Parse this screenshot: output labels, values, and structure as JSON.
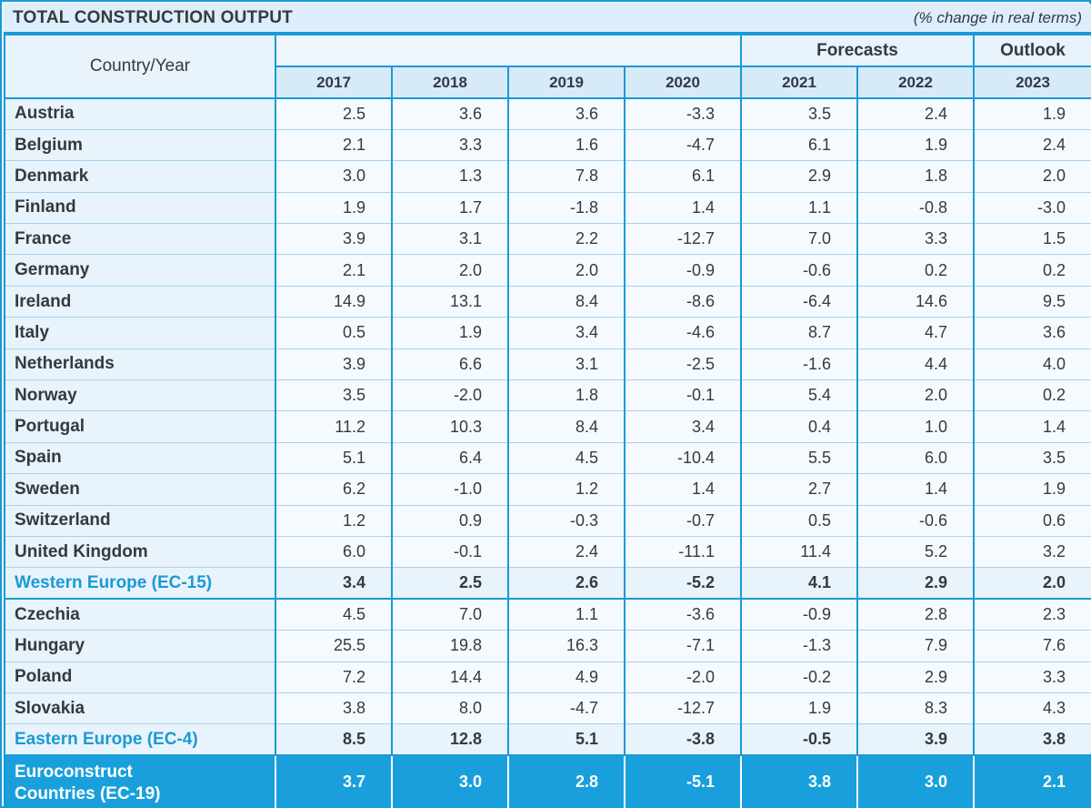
{
  "chart_data": {
    "type": "table",
    "title": "TOTAL CONSTRUCTION OUTPUT",
    "subtitle": "(% change in real terms)",
    "row_header_label": "Country/Year",
    "column_groups": [
      {
        "label": "",
        "span": 4
      },
      {
        "label": "Forecasts",
        "span": 2
      },
      {
        "label": "Outlook",
        "span": 1
      }
    ],
    "years": [
      "2017",
      "2018",
      "2019",
      "2020",
      "2021",
      "2022",
      "2023"
    ],
    "rows": [
      {
        "name": "Austria",
        "values": [
          "2.5",
          "3.6",
          "3.6",
          "-3.3",
          "3.5",
          "2.4",
          "1.9"
        ]
      },
      {
        "name": "Belgium",
        "values": [
          "2.1",
          "3.3",
          "1.6",
          "-4.7",
          "6.1",
          "1.9",
          "2.4"
        ]
      },
      {
        "name": "Denmark",
        "values": [
          "3.0",
          "1.3",
          "7.8",
          "6.1",
          "2.9",
          "1.8",
          "2.0"
        ]
      },
      {
        "name": "Finland",
        "values": [
          "1.9",
          "1.7",
          "-1.8",
          "1.4",
          "1.1",
          "-0.8",
          "-3.0"
        ]
      },
      {
        "name": "France",
        "values": [
          "3.9",
          "3.1",
          "2.2",
          "-12.7",
          "7.0",
          "3.3",
          "1.5"
        ]
      },
      {
        "name": "Germany",
        "values": [
          "2.1",
          "2.0",
          "2.0",
          "-0.9",
          "-0.6",
          "0.2",
          "0.2"
        ]
      },
      {
        "name": "Ireland",
        "values": [
          "14.9",
          "13.1",
          "8.4",
          "-8.6",
          "-6.4",
          "14.6",
          "9.5"
        ]
      },
      {
        "name": "Italy",
        "values": [
          "0.5",
          "1.9",
          "3.4",
          "-4.6",
          "8.7",
          "4.7",
          "3.6"
        ]
      },
      {
        "name": "Netherlands",
        "values": [
          "3.9",
          "6.6",
          "3.1",
          "-2.5",
          "-1.6",
          "4.4",
          "4.0"
        ]
      },
      {
        "name": "Norway",
        "values": [
          "3.5",
          "-2.0",
          "1.8",
          "-0.1",
          "5.4",
          "2.0",
          "0.2"
        ]
      },
      {
        "name": "Portugal",
        "values": [
          "11.2",
          "10.3",
          "8.4",
          "3.4",
          "0.4",
          "1.0",
          "1.4"
        ]
      },
      {
        "name": "Spain",
        "values": [
          "5.1",
          "6.4",
          "4.5",
          "-10.4",
          "5.5",
          "6.0",
          "3.5"
        ]
      },
      {
        "name": "Sweden",
        "values": [
          "6.2",
          "-1.0",
          "1.2",
          "1.4",
          "2.7",
          "1.4",
          "1.9"
        ]
      },
      {
        "name": "Switzerland",
        "values": [
          "1.2",
          "0.9",
          "-0.3",
          "-0.7",
          "0.5",
          "-0.6",
          "0.6"
        ]
      },
      {
        "name": "United Kingdom",
        "values": [
          "6.0",
          "-0.1",
          "2.4",
          "-11.1",
          "11.4",
          "5.2",
          "3.2"
        ]
      },
      {
        "name": "Western Europe (EC-15)",
        "values": [
          "3.4",
          "2.5",
          "2.6",
          "-5.2",
          "4.1",
          "2.9",
          "2.0"
        ],
        "aggregate": true
      },
      {
        "name": "Czechia",
        "values": [
          "4.5",
          "7.0",
          "1.1",
          "-3.6",
          "-0.9",
          "2.8",
          "2.3"
        ]
      },
      {
        "name": "Hungary",
        "values": [
          "25.5",
          "19.8",
          "16.3",
          "-7.1",
          "-1.3",
          "7.9",
          "7.6"
        ]
      },
      {
        "name": "Poland",
        "values": [
          "7.2",
          "14.4",
          "4.9",
          "-2.0",
          "-0.2",
          "2.9",
          "3.3"
        ]
      },
      {
        "name": "Slovakia",
        "values": [
          "3.8",
          "8.0",
          "-4.7",
          "-12.7",
          "1.9",
          "8.3",
          "4.3"
        ]
      },
      {
        "name": "Eastern Europe (EC-4)",
        "values": [
          "8.5",
          "12.8",
          "5.1",
          "-3.8",
          "-0.5",
          "3.9",
          "3.8"
        ],
        "aggregate": true
      },
      {
        "name": "Euroconstruct Countries (EC-19)",
        "values": [
          "3.7",
          "3.0",
          "2.8",
          "-5.1",
          "3.8",
          "3.0",
          "2.1"
        ],
        "total": true
      }
    ]
  },
  "colors": {
    "accent": "#1a9ad7",
    "total_band": "#19a0dc",
    "header_bg": "#d7eaf8"
  }
}
